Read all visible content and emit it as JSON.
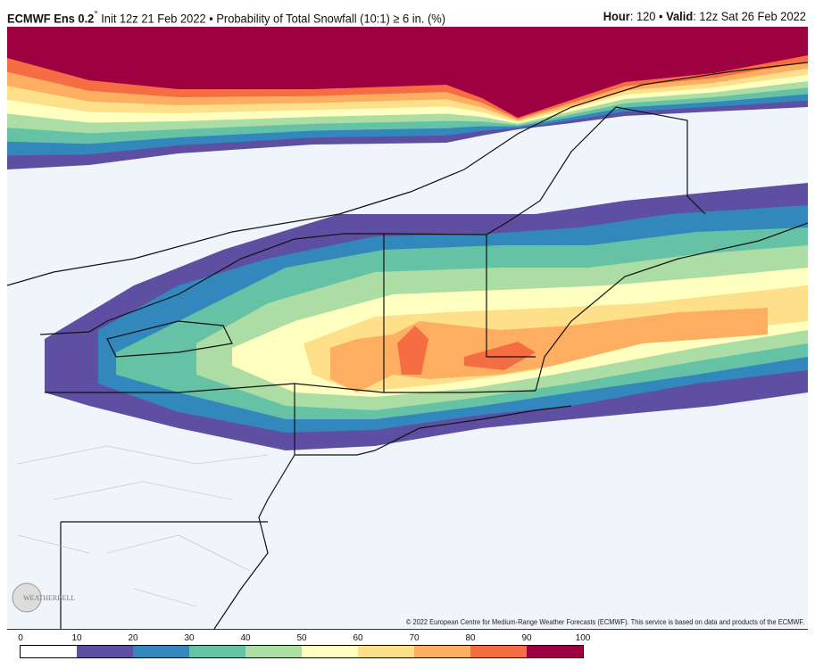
{
  "header": {
    "model": "ECMWF Ens 0.2",
    "degree": "°",
    "init": "Init 12z 21 Feb 2022",
    "bullet": "•",
    "product": "Probability of Total Snowfall (10:1) ≥ 6 in. (%)",
    "hour_label": "Hour",
    "hour": "120",
    "valid_label": "Valid",
    "valid": "12z Sat 26 Feb 2022"
  },
  "credit": "© 2022 European Centre for Medium-Range Weather Forecasts (ECMWF). This service is based on data and products of the ECMWF.",
  "logo": "WeatherBELL Analytics LLC",
  "map": {
    "background": "#f0f4fb",
    "region": "Northeast US / Southern Canada"
  },
  "colorbar": {
    "ticks": [
      "0",
      "10",
      "20",
      "30",
      "40",
      "50",
      "60",
      "70",
      "80",
      "90",
      "100"
    ],
    "colors": [
      "#ffffff",
      "#5e4fa2",
      "#3288bd",
      "#66c2a5",
      "#abdda4",
      "#ffffbf",
      "#fee08b",
      "#fdae61",
      "#f46d43",
      "#9e0142"
    ]
  }
}
